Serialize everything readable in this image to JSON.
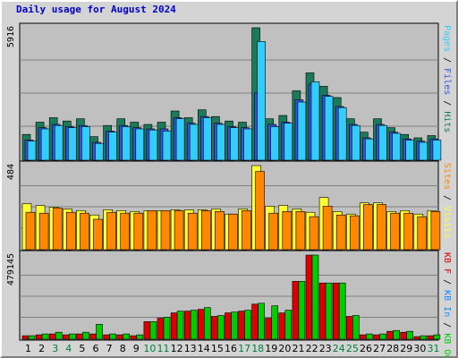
{
  "title": "Daily usage for August 2024",
  "colors": {
    "hits": "#1a7a5a",
    "files": "#3355dd",
    "pages": "#33ccff",
    "visits": "#ffff33",
    "sites": "#ff8800",
    "kb_f": "#dd0000",
    "kb_in": "#1188ff",
    "kb_out": "#00cc00",
    "weekend": "#008040",
    "weekday": "#000000"
  },
  "chart_data": [
    {
      "type": "bar",
      "ylabel": "Pages / Files / Hits",
      "ymax_label": "5916",
      "ylim": [
        0,
        5916
      ],
      "categories": [
        "1",
        "2",
        "3",
        "4",
        "5",
        "6",
        "7",
        "8",
        "9",
        "10",
        "11",
        "12",
        "13",
        "14",
        "15",
        "16",
        "17",
        "18",
        "19",
        "20",
        "21",
        "22",
        "23",
        "24",
        "25",
        "26",
        "27",
        "28",
        "29",
        "30",
        "31"
      ],
      "series": [
        {
          "name": "Hits",
          "values": [
            1150,
            1700,
            1900,
            1750,
            1850,
            1050,
            1550,
            1850,
            1700,
            1600,
            1700,
            2200,
            1900,
            2250,
            1950,
            1750,
            1700,
            5916,
            1850,
            2000,
            3100,
            3900,
            3300,
            2800,
            1850,
            1250,
            1850,
            1450,
            1150,
            1000,
            1100
          ]
        },
        {
          "name": "Files",
          "values": [
            900,
            1450,
            1600,
            1500,
            1550,
            800,
            1300,
            1550,
            1450,
            1400,
            1400,
            1900,
            1650,
            1950,
            1650,
            1500,
            1450,
            3000,
            1600,
            1700,
            2700,
            3400,
            2900,
            2400,
            1600,
            1000,
            1600,
            1250,
            950,
            850,
            950
          ]
        },
        {
          "name": "Pages",
          "values": [
            850,
            1400,
            1550,
            1450,
            1500,
            750,
            1250,
            1500,
            1400,
            1350,
            1300,
            1850,
            1600,
            1900,
            1600,
            1450,
            1400,
            5300,
            1500,
            1650,
            2600,
            3500,
            2850,
            2350,
            1550,
            950,
            1550,
            1200,
            900,
            800,
            900
          ]
        }
      ]
    },
    {
      "type": "bar",
      "ylabel": "Visits / Sites",
      "ymax_label": "484",
      "ylim": [
        0,
        484
      ],
      "categories": [
        "1",
        "2",
        "3",
        "4",
        "5",
        "6",
        "7",
        "8",
        "9",
        "10",
        "11",
        "12",
        "13",
        "14",
        "15",
        "16",
        "17",
        "18",
        "19",
        "20",
        "21",
        "22",
        "23",
        "24",
        "25",
        "26",
        "27",
        "28",
        "29",
        "30",
        "31"
      ],
      "series": [
        {
          "name": "Visits",
          "values": [
            265,
            255,
            245,
            235,
            225,
            200,
            230,
            225,
            220,
            225,
            225,
            230,
            230,
            230,
            235,
            205,
            235,
            484,
            250,
            255,
            235,
            215,
            300,
            220,
            205,
            270,
            270,
            220,
            225,
            205,
            225
          ]
        },
        {
          "name": "Sites",
          "values": [
            215,
            210,
            240,
            215,
            210,
            175,
            215,
            210,
            210,
            225,
            225,
            225,
            210,
            225,
            220,
            205,
            225,
            450,
            210,
            220,
            220,
            190,
            250,
            200,
            195,
            260,
            260,
            210,
            210,
            190,
            220
          ]
        }
      ]
    },
    {
      "type": "bar",
      "ylabel": "KB F / KB In / KB Out",
      "ymax_label": "479145",
      "ylim": [
        0,
        479145
      ],
      "categories": [
        "1",
        "2",
        "3",
        "4",
        "5",
        "6",
        "7",
        "8",
        "9",
        "10",
        "11",
        "12",
        "13",
        "14",
        "15",
        "16",
        "17",
        "18",
        "19",
        "20",
        "21",
        "22",
        "23",
        "24",
        "25",
        "26",
        "27",
        "28",
        "29",
        "30",
        "31"
      ],
      "series": [
        {
          "name": "KB F",
          "values": [
            20000,
            25000,
            30000,
            25000,
            30000,
            30000,
            25000,
            25000,
            20000,
            100000,
            120000,
            150000,
            160000,
            170000,
            130000,
            150000,
            160000,
            200000,
            120000,
            150000,
            330000,
            479145,
            320000,
            320000,
            130000,
            25000,
            25000,
            45000,
            40000,
            15000,
            20000
          ]
        },
        {
          "name": "KB In",
          "values": [
            0,
            0,
            0,
            0,
            0,
            0,
            0,
            0,
            0,
            0,
            0,
            0,
            0,
            0,
            0,
            0,
            0,
            0,
            0,
            0,
            0,
            0,
            0,
            0,
            0,
            0,
            0,
            0,
            0,
            0,
            0
          ]
        },
        {
          "name": "KB Out",
          "values": [
            20000,
            30000,
            40000,
            30000,
            40000,
            85000,
            30000,
            30000,
            25000,
            100000,
            125000,
            160000,
            165000,
            180000,
            135000,
            155000,
            165000,
            205000,
            190000,
            165000,
            330000,
            479145,
            320000,
            320000,
            135000,
            30000,
            30000,
            50000,
            45000,
            20000,
            25000
          ]
        }
      ]
    }
  ],
  "day_labels": [
    "1",
    "2",
    "3",
    "4",
    "5",
    "6",
    "7",
    "8",
    "9",
    "10",
    "11",
    "12",
    "13",
    "14",
    "15",
    "16",
    "17",
    "18",
    "19",
    "20",
    "21",
    "22",
    "23",
    "24",
    "25",
    "26",
    "27",
    "28",
    "29",
    "30",
    "31"
  ],
  "weekend_days": [
    3,
    4,
    10,
    11,
    17,
    18,
    24,
    25,
    31
  ],
  "side_labels": {
    "top": [
      {
        "text": "Pages",
        "key": "pages"
      },
      {
        "text": " / ",
        "key": "weekday"
      },
      {
        "text": "Files",
        "key": "files"
      },
      {
        "text": " / ",
        "key": "weekday"
      },
      {
        "text": "Hits",
        "key": "hits"
      }
    ],
    "mid": [
      {
        "text": "Sites",
        "key": "sites"
      },
      {
        "text": " / ",
        "key": "weekday"
      },
      {
        "text": "Visits",
        "key": "visits"
      }
    ],
    "bot": [
      {
        "text": "KB F",
        "key": "kb_f"
      },
      {
        "text": " / ",
        "key": "weekday"
      },
      {
        "text": "KB In",
        "key": "kb_in"
      },
      {
        "text": " / ",
        "key": "weekday"
      },
      {
        "text": "KB Out",
        "key": "kb_out"
      }
    ]
  }
}
